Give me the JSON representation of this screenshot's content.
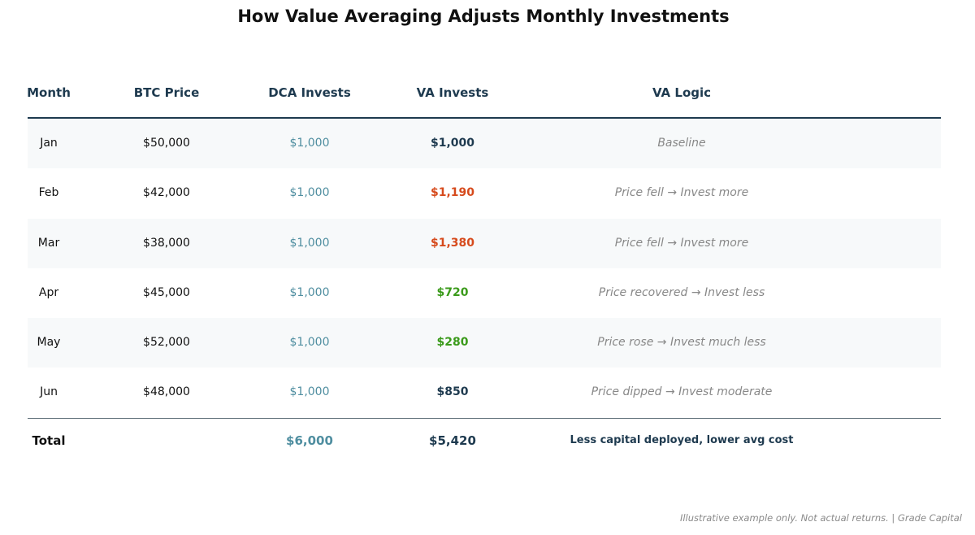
{
  "title": "How Value Averaging Adjusts Monthly Investments",
  "footnote": "Illustrative example only. Not actual returns. | Grade Capital",
  "colors": {
    "header": "#1e3a4f",
    "dca": "#4f8ea0",
    "va_neutral": "#1e3a4f",
    "va_more": "#d64a1c",
    "va_less": "#3a9a1a",
    "logic": "#888888"
  },
  "chart_data": {
    "type": "table",
    "columns": [
      "Month",
      "BTC Price",
      "DCA Invests",
      "VA Invests",
      "VA Logic"
    ],
    "rows": [
      {
        "month": "Jan",
        "price": "$50,000",
        "dca": "$1,000",
        "va": "$1,000",
        "va_color": "#1e3a4f",
        "logic": "Baseline"
      },
      {
        "month": "Feb",
        "price": "$42,000",
        "dca": "$1,000",
        "va": "$1,190",
        "va_color": "#d64a1c",
        "logic": "Price fell → Invest more"
      },
      {
        "month": "Mar",
        "price": "$38,000",
        "dca": "$1,000",
        "va": "$1,380",
        "va_color": "#d64a1c",
        "logic": "Price fell → Invest more"
      },
      {
        "month": "Apr",
        "price": "$45,000",
        "dca": "$1,000",
        "va": "$720",
        "va_color": "#3a9a1a",
        "logic": "Price recovered → Invest less"
      },
      {
        "month": "May",
        "price": "$52,000",
        "dca": "$1,000",
        "va": "$280",
        "va_color": "#3a9a1a",
        "logic": "Price rose → Invest much less"
      },
      {
        "month": "Jun",
        "price": "$48,000",
        "dca": "$1,000",
        "va": "$850",
        "va_color": "#1e3a4f",
        "logic": "Price dipped → Invest moderate"
      }
    ],
    "total": {
      "label": "Total",
      "dca": "$6,000",
      "va": "$5,420",
      "logic": "Less capital deployed, lower avg cost"
    }
  }
}
